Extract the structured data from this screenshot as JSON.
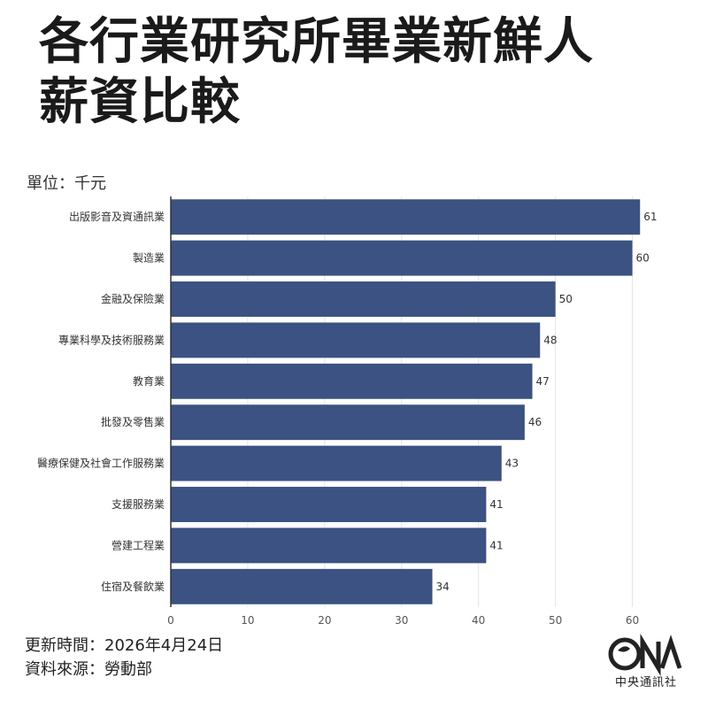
{
  "title_line1": "各行業研究所畢業新鮮人",
  "title_line2": "薪資比較",
  "unit_label": "單位：千元",
  "footer": {
    "updated_label": "更新時間：",
    "updated_value": "2026年4月24日",
    "source_label": "資料來源：",
    "source_value": "勞動部"
  },
  "logo_text": "中央通訊社",
  "colors": {
    "bar": "#3b5282",
    "grid": "#e6e6e6",
    "axis": "#333333"
  },
  "chart_data": {
    "type": "bar",
    "orientation": "horizontal",
    "categories": [
      "出版影音及資通訊業",
      "製造業",
      "金融及保險業",
      "專業科學及技術服務業",
      "教育業",
      "批發及零售業",
      "醫療保健及社會工作服務業",
      "支援服務業",
      "營建工程業",
      "住宿及餐飲業"
    ],
    "values": [
      61,
      60,
      50,
      48,
      47,
      46,
      43,
      41,
      41,
      34
    ],
    "data_labels": [
      "61",
      "60",
      "50",
      "48",
      "47",
      "46",
      "43",
      "41",
      "41",
      "34"
    ],
    "xlim": [
      0,
      65
    ],
    "xticks": [
      0,
      10,
      20,
      30,
      40,
      50,
      60
    ],
    "grid": true,
    "legend": "none"
  }
}
